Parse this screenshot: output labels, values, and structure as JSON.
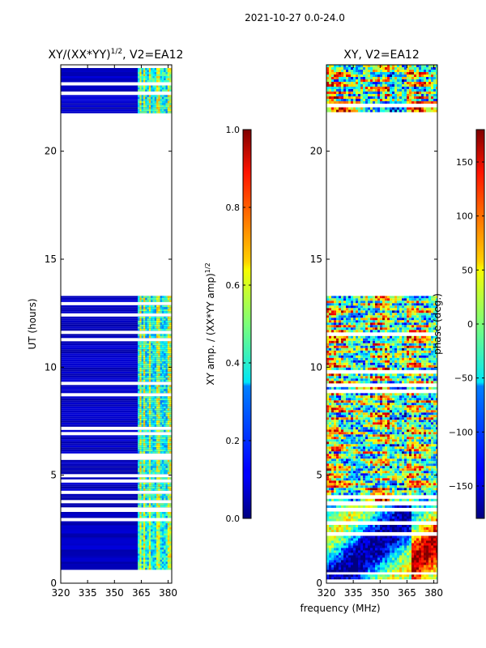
{
  "suptitle": "2021-10-27 0.0-24.0",
  "xlabel_common": "frequency (MHz)",
  "chart_data": [
    {
      "type": "heatmap",
      "title_main": "XY/(XX*YY)",
      "title_sup": "1/2",
      "title_tail": ", V2=EA12",
      "xlabel": "",
      "ylabel": "UT (hours)",
      "xlim": [
        320,
        382
      ],
      "ylim": [
        0,
        24
      ],
      "xticks": [
        320,
        335,
        350,
        365,
        380
      ],
      "yticks": [
        0,
        5,
        10,
        15,
        20
      ],
      "data_bands_hours": [
        [
          0.7,
          3.3
        ],
        [
          3.6,
          13.3
        ],
        [
          21.8,
          22.6
        ],
        [
          22.8,
          24
        ]
      ],
      "colorbar": {
        "label_main": "XY amp. / (XX*YY amp)",
        "label_sup": "1/2",
        "range": [
          0.0,
          1.0
        ],
        "ticks": [
          "0.0",
          "0.2",
          "0.4",
          "0.6",
          "0.8",
          "1.0"
        ],
        "colormap": "jet"
      }
    },
    {
      "type": "heatmap",
      "title_main": "XY, V2=EA12",
      "xlabel": "frequency (MHz)",
      "ylabel": "",
      "xlim": [
        320,
        382
      ],
      "ylim": [
        0,
        24
      ],
      "xticks": [
        320,
        335,
        350,
        365,
        380
      ],
      "yticks": [
        0,
        5,
        10,
        15,
        20
      ],
      "data_bands_hours": [
        [
          0.2,
          0.4
        ],
        [
          0.6,
          3.6
        ],
        [
          3.8,
          13.3
        ],
        [
          21.9,
          24
        ]
      ],
      "colorbar": {
        "label": "phase (deg.)",
        "range": [
          -180,
          180
        ],
        "ticks": [
          "150",
          "100",
          "50",
          "0",
          "−50",
          "−100",
          "−150"
        ],
        "colormap": "jet"
      }
    }
  ]
}
